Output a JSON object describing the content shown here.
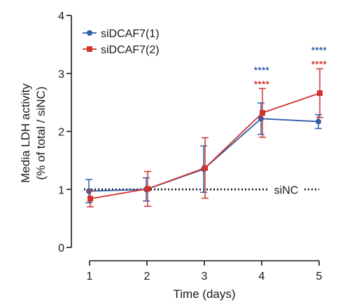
{
  "chart_data": {
    "type": "line",
    "title": "",
    "xlabel": "Time (days)",
    "ylabel_lines": [
      "Media LDH activity",
      "(% of total / siNC)"
    ],
    "x": [
      1,
      2,
      3,
      4,
      5
    ],
    "xticks": [
      "1",
      "2",
      "3",
      "4",
      "5"
    ],
    "xlim": [
      1,
      5
    ],
    "ylim": [
      0,
      4
    ],
    "yticks": [
      "0",
      "1",
      "2",
      "3",
      "4"
    ],
    "grid": false,
    "legend_position": "top-left",
    "series": [
      {
        "name": "siDCAF7(1)",
        "color": "#2f5fa8",
        "marker": "circle",
        "values": [
          0.97,
          1.0,
          1.35,
          2.22,
          2.17
        ],
        "error": [
          0.2,
          0.2,
          0.4,
          0.27,
          0.12
        ]
      },
      {
        "name": "siDCAF7(2)",
        "color": "#d0322c",
        "marker": "square",
        "values": [
          0.84,
          1.01,
          1.37,
          2.32,
          2.66
        ],
        "error": [
          0.14,
          0.3,
          0.52,
          0.42,
          0.42
        ]
      }
    ],
    "reference_line": {
      "y": 1,
      "label": "siNC",
      "color": "#1a1a1a"
    },
    "annotations": [
      {
        "x": 4,
        "series": "siDCAF7(1)",
        "text": "****",
        "color": "#2f5fa8"
      },
      {
        "x": 4,
        "series": "siDCAF7(2)",
        "text": "****",
        "color": "#d0322c"
      },
      {
        "x": 5,
        "series": "siDCAF7(1)",
        "text": "****",
        "color": "#2f5fa8"
      },
      {
        "x": 5,
        "series": "siDCAF7(2)",
        "text": "****",
        "color": "#d0322c"
      }
    ]
  }
}
